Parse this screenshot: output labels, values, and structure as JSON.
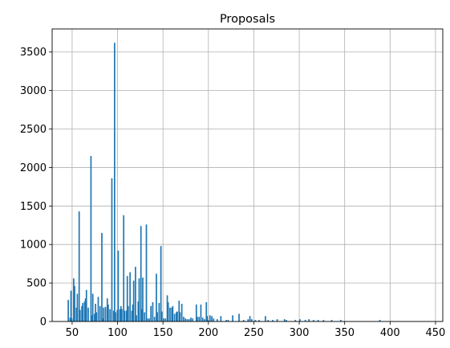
{
  "chart_data": {
    "type": "bar",
    "title": "Proposals",
    "xlabel": "",
    "ylabel": "",
    "xlim": [
      28,
      458
    ],
    "ylim": [
      0,
      3800
    ],
    "xticks": [
      50,
      100,
      150,
      200,
      250,
      300,
      350,
      400,
      450
    ],
    "yticks": [
      0,
      500,
      1000,
      1500,
      2000,
      2500,
      3000,
      3500
    ],
    "grid": true,
    "legend": "none",
    "bar_color": "#1f77b4",
    "bin_width": 1.5,
    "bins": [
      [
        45,
        280
      ],
      [
        47,
        50
      ],
      [
        48,
        400
      ],
      [
        49,
        40
      ],
      [
        51,
        560
      ],
      [
        52,
        460
      ],
      [
        54,
        180
      ],
      [
        55,
        360
      ],
      [
        57,
        1430
      ],
      [
        58,
        150
      ],
      [
        60,
        200
      ],
      [
        61,
        240
      ],
      [
        63,
        260
      ],
      [
        64,
        300
      ],
      [
        65,
        410
      ],
      [
        67,
        180
      ],
      [
        70,
        2150
      ],
      [
        71,
        80
      ],
      [
        72,
        360
      ],
      [
        74,
        100
      ],
      [
        75,
        230
      ],
      [
        76,
        120
      ],
      [
        78,
        320
      ],
      [
        80,
        200
      ],
      [
        82,
        1150
      ],
      [
        83,
        40
      ],
      [
        84,
        180
      ],
      [
        86,
        190
      ],
      [
        88,
        300
      ],
      [
        89,
        220
      ],
      [
        91,
        160
      ],
      [
        93,
        1860
      ],
      [
        95,
        140
      ],
      [
        96,
        3620
      ],
      [
        97,
        120
      ],
      [
        99,
        150
      ],
      [
        100,
        920
      ],
      [
        102,
        160
      ],
      [
        103,
        200
      ],
      [
        104,
        160
      ],
      [
        106,
        1380
      ],
      [
        107,
        140
      ],
      [
        109,
        140
      ],
      [
        110,
        590
      ],
      [
        111,
        200
      ],
      [
        113,
        640
      ],
      [
        115,
        140
      ],
      [
        116,
        220
      ],
      [
        117,
        530
      ],
      [
        119,
        710
      ],
      [
        120,
        80
      ],
      [
        122,
        260
      ],
      [
        123,
        560
      ],
      [
        125,
        1240
      ],
      [
        126,
        160
      ],
      [
        127,
        570
      ],
      [
        129,
        120
      ],
      [
        131,
        1260
      ],
      [
        132,
        40
      ],
      [
        134,
        40
      ],
      [
        136,
        200
      ],
      [
        138,
        250
      ],
      [
        140,
        60
      ],
      [
        142,
        620
      ],
      [
        143,
        120
      ],
      [
        145,
        240
      ],
      [
        147,
        980
      ],
      [
        148,
        130
      ],
      [
        150,
        40
      ],
      [
        152,
        40
      ],
      [
        154,
        340
      ],
      [
        155,
        250
      ],
      [
        157,
        180
      ],
      [
        159,
        180
      ],
      [
        160,
        200
      ],
      [
        162,
        100
      ],
      [
        164,
        120
      ],
      [
        165,
        130
      ],
      [
        167,
        270
      ],
      [
        168,
        120
      ],
      [
        170,
        230
      ],
      [
        172,
        60
      ],
      [
        174,
        40
      ],
      [
        176,
        30
      ],
      [
        178,
        30
      ],
      [
        180,
        50
      ],
      [
        182,
        40
      ],
      [
        186,
        220
      ],
      [
        187,
        60
      ],
      [
        189,
        60
      ],
      [
        191,
        220
      ],
      [
        193,
        50
      ],
      [
        195,
        30
      ],
      [
        197,
        250
      ],
      [
        198,
        70
      ],
      [
        199,
        20
      ],
      [
        201,
        80
      ],
      [
        203,
        70
      ],
      [
        205,
        40
      ],
      [
        209,
        30
      ],
      [
        213,
        70
      ],
      [
        219,
        20
      ],
      [
        221,
        20
      ],
      [
        226,
        80
      ],
      [
        233,
        100
      ],
      [
        238,
        20
      ],
      [
        243,
        30
      ],
      [
        245,
        70
      ],
      [
        247,
        30
      ],
      [
        251,
        20
      ],
      [
        255,
        20
      ],
      [
        262,
        70
      ],
      [
        265,
        20
      ],
      [
        270,
        20
      ],
      [
        275,
        30
      ],
      [
        283,
        30
      ],
      [
        285,
        20
      ],
      [
        295,
        20
      ],
      [
        300,
        30
      ],
      [
        306,
        20
      ],
      [
        310,
        30
      ],
      [
        315,
        20
      ],
      [
        320,
        20
      ],
      [
        326,
        20
      ],
      [
        335,
        20
      ],
      [
        345,
        20
      ],
      [
        388,
        20
      ]
    ]
  }
}
